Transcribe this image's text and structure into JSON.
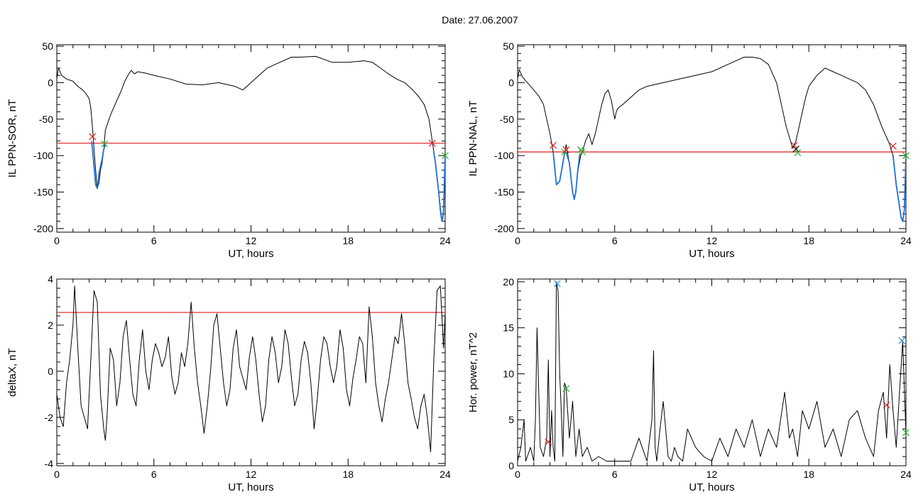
{
  "page": {
    "title": "Date:  27.06.2007"
  },
  "chart_data": [
    {
      "type": "line",
      "id": "p1",
      "xlabel": "UT, hours",
      "ylabel": "IL PPN-SOR, nT",
      "xlim": [
        0,
        24
      ],
      "ylim": [
        -205,
        52
      ],
      "xticks": [
        0,
        6,
        12,
        18,
        24
      ],
      "yticks": [
        50,
        0,
        -50,
        -100,
        -150,
        -200
      ],
      "colors": {
        "main": "#000000",
        "highlight": "#1f6fd6",
        "threshold": "#e11b1b"
      },
      "threshold": -83,
      "series": [
        {
          "role": "main",
          "x": [
            0,
            0.1,
            0.3,
            0.6,
            1.0,
            1.3,
            1.6,
            1.8,
            2.0,
            2.1,
            2.2,
            2.3,
            2.4,
            2.5,
            2.6,
            2.7,
            2.8,
            2.9,
            3.0,
            3.2,
            3.4,
            3.6,
            3.8,
            4.0,
            4.2,
            4.4,
            4.6,
            4.8,
            5.0,
            5.5,
            6.0,
            7.0,
            8.0,
            9.0,
            10.0,
            11.0,
            11.5,
            12.0,
            12.5,
            13.0,
            13.5,
            14.0,
            14.5,
            15.0,
            16.0,
            17.0,
            18.0,
            19.0,
            19.5,
            20.0,
            20.5,
            21.0,
            21.5,
            22.0,
            22.4,
            22.7,
            23.0,
            23.2,
            23.4,
            23.6,
            23.7,
            23.8,
            23.9,
            24.0
          ],
          "y": [
            5,
            20,
            10,
            5,
            2,
            -5,
            -10,
            -15,
            -22,
            -35,
            -60,
            -90,
            -120,
            -145,
            -138,
            -120,
            -110,
            -92,
            -65,
            -52,
            -40,
            -30,
            -20,
            -10,
            2,
            10,
            17,
            12,
            15,
            13,
            10,
            5,
            -2,
            -3,
            0,
            -5,
            -10,
            0,
            10,
            20,
            25,
            30,
            35,
            35,
            36,
            28,
            28,
            30,
            28,
            20,
            12,
            5,
            0,
            -10,
            -20,
            -30,
            -50,
            -80,
            -110,
            -150,
            -170,
            -190,
            -180,
            -100
          ]
        },
        {
          "role": "highlight",
          "x": [
            2.15,
            2.2,
            2.3,
            2.4,
            2.5,
            2.55,
            2.6,
            2.7,
            2.8,
            2.9,
            3.0
          ],
          "y": [
            -80,
            -90,
            -115,
            -140,
            -145,
            -138,
            -125,
            -115,
            -105,
            -92,
            -84
          ]
        },
        {
          "role": "highlight",
          "x": [
            23.3,
            23.4,
            23.5,
            23.6,
            23.7,
            23.8,
            23.85,
            23.9,
            24.0
          ],
          "y": [
            -95,
            -110,
            -130,
            -150,
            -175,
            -190,
            -185,
            -175,
            -100
          ]
        }
      ],
      "markers": [
        {
          "x": 2.2,
          "y": -74,
          "color": "#e11b1b"
        },
        {
          "x": 2.95,
          "y": -84,
          "color": "#2db52d"
        },
        {
          "x": 23.2,
          "y": -83,
          "color": "#e11b1b"
        },
        {
          "x": 24.0,
          "y": -100,
          "color": "#2db52d"
        }
      ]
    },
    {
      "type": "line",
      "id": "p2",
      "xlabel": "UT, hours",
      "ylabel": "IL PPN-NAL, nT",
      "xlim": [
        0,
        24
      ],
      "ylim": [
        -205,
        52
      ],
      "xticks": [
        0,
        6,
        12,
        18,
        24
      ],
      "yticks": [
        50,
        0,
        -50,
        -100,
        -150,
        -200
      ],
      "colors": {
        "main": "#000000",
        "highlight": "#1f6fd6",
        "threshold": "#e11b1b"
      },
      "threshold": -95,
      "series": [
        {
          "role": "main",
          "x": [
            0,
            0.1,
            0.3,
            0.6,
            1.0,
            1.3,
            1.6,
            1.8,
            2.0,
            2.2,
            2.4,
            2.6,
            2.8,
            3.0,
            3.2,
            3.4,
            3.5,
            3.6,
            3.7,
            3.9,
            4.0,
            4.2,
            4.4,
            4.6,
            4.8,
            5.0,
            5.2,
            5.4,
            5.6,
            5.8,
            6.0,
            6.1,
            6.2,
            6.5,
            7.0,
            7.5,
            8.0,
            9.0,
            10.0,
            11.0,
            12.0,
            12.5,
            13.0,
            13.5,
            14.0,
            14.5,
            15.0,
            15.5,
            16.0,
            16.3,
            16.6,
            16.8,
            17.0,
            17.2,
            17.4,
            17.6,
            17.8,
            18.0,
            18.5,
            19.0,
            19.5,
            20.0,
            20.5,
            21.0,
            21.5,
            22.0,
            22.5,
            22.8,
            23.0,
            23.2,
            23.4,
            23.6,
            23.7,
            23.8,
            23.9,
            24.0
          ],
          "y": [
            5,
            18,
            8,
            0,
            -10,
            -18,
            -30,
            -50,
            -70,
            -95,
            -140,
            -135,
            -110,
            -85,
            -110,
            -150,
            -160,
            -150,
            -125,
            -100,
            -95,
            -80,
            -70,
            -85,
            -70,
            -50,
            -30,
            -15,
            -10,
            -25,
            -50,
            -40,
            -35,
            -30,
            -20,
            -10,
            -5,
            0,
            5,
            10,
            15,
            20,
            25,
            30,
            35,
            35,
            33,
            25,
            0,
            -30,
            -60,
            -75,
            -90,
            -80,
            -60,
            -40,
            -20,
            -5,
            10,
            20,
            15,
            10,
            5,
            0,
            -10,
            -30,
            -60,
            -75,
            -85,
            -100,
            -140,
            -170,
            -185,
            -190,
            -175,
            -100
          ]
        },
        {
          "role": "highlight",
          "x": [
            2.2,
            2.4,
            2.6,
            2.8,
            2.9
          ],
          "y": [
            -95,
            -140,
            -135,
            -110,
            -97
          ]
        },
        {
          "role": "highlight",
          "x": [
            3.0,
            3.2,
            3.4,
            3.5,
            3.6,
            3.7,
            3.85
          ],
          "y": [
            -95,
            -110,
            -150,
            -160,
            -150,
            -125,
            -97
          ]
        },
        {
          "role": "highlight",
          "x": [
            23.2,
            23.4,
            23.6,
            23.7,
            23.8,
            23.9,
            24.0
          ],
          "y": [
            -100,
            -140,
            -170,
            -185,
            -190,
            -175,
            -100
          ]
        }
      ],
      "markers": [
        {
          "x": 2.2,
          "y": -86,
          "color": "#e11b1b"
        },
        {
          "x": 2.9,
          "y": -95,
          "color": "#2db52d"
        },
        {
          "x": 3.0,
          "y": -92,
          "color": "#e11b1b"
        },
        {
          "x": 3.9,
          "y": -92,
          "color": "#2db52d"
        },
        {
          "x": 4.0,
          "y": -95,
          "color": "#2db52d"
        },
        {
          "x": 17.1,
          "y": -86,
          "color": "#e11b1b"
        },
        {
          "x": 17.2,
          "y": -91,
          "color": "#000000"
        },
        {
          "x": 17.3,
          "y": -96,
          "color": "#2db52d"
        },
        {
          "x": 23.2,
          "y": -87,
          "color": "#e11b1b"
        },
        {
          "x": 24.0,
          "y": -100,
          "color": "#2db52d"
        }
      ]
    },
    {
      "type": "line",
      "id": "p3",
      "xlabel": "UT, hours",
      "ylabel": "deltaX, nT",
      "xlim": [
        0,
        24
      ],
      "ylim": [
        -4.1,
        4
      ],
      "xticks": [
        0,
        6,
        12,
        18,
        24
      ],
      "yticks": [
        4,
        2,
        0,
        -2,
        -4
      ],
      "colors": {
        "main": "#000000",
        "threshold": "#e11b1b"
      },
      "threshold": 2.55,
      "series": [
        {
          "role": "main",
          "x": [
            0,
            0.2,
            0.4,
            0.6,
            0.8,
            1.0,
            1.1,
            1.3,
            1.5,
            1.7,
            1.9,
            2.1,
            2.3,
            2.5,
            2.7,
            2.9,
            3.0,
            3.1,
            3.3,
            3.5,
            3.7,
            3.9,
            4.1,
            4.3,
            4.5,
            4.7,
            4.9,
            5.1,
            5.3,
            5.5,
            5.7,
            5.9,
            6.1,
            6.3,
            6.5,
            6.7,
            6.9,
            7.1,
            7.3,
            7.5,
            7.7,
            7.9,
            8.1,
            8.3,
            8.5,
            8.7,
            8.9,
            9.1,
            9.3,
            9.5,
            9.7,
            9.9,
            10.1,
            10.3,
            10.5,
            10.7,
            10.9,
            11.1,
            11.3,
            11.5,
            11.7,
            11.9,
            12.1,
            12.3,
            12.5,
            12.7,
            12.9,
            13.1,
            13.3,
            13.5,
            13.7,
            13.9,
            14.1,
            14.3,
            14.5,
            14.7,
            14.9,
            15.1,
            15.3,
            15.5,
            15.7,
            15.9,
            16.1,
            16.3,
            16.5,
            16.7,
            16.9,
            17.1,
            17.3,
            17.5,
            17.7,
            17.9,
            18.1,
            18.3,
            18.5,
            18.7,
            18.9,
            19.1,
            19.3,
            19.5,
            19.7,
            19.9,
            20.1,
            20.3,
            20.5,
            20.7,
            20.9,
            21.1,
            21.3,
            21.5,
            21.7,
            21.9,
            22.1,
            22.3,
            22.5,
            22.7,
            22.9,
            23.1,
            23.3,
            23.5,
            23.7,
            23.9,
            24.0
          ],
          "y": [
            -1,
            -2,
            -2.4,
            -0.5,
            0.5,
            2,
            3.7,
            1,
            -1.5,
            -2,
            -2.5,
            0.5,
            3.5,
            3,
            -1,
            -2.5,
            -3,
            -2,
            1,
            0.5,
            -1.5,
            -0.5,
            1.5,
            2.2,
            0.5,
            -1,
            -1.5,
            0.5,
            1.8,
            0,
            -0.8,
            0.5,
            1.2,
            0.8,
            0.2,
            0.6,
            1.5,
            -0.2,
            -1,
            -0.5,
            0.8,
            0.2,
            1.2,
            3,
            1,
            -0.5,
            -1.5,
            -2.7,
            -1.5,
            0,
            2,
            2.5,
            1,
            -0.5,
            -1.5,
            -0.8,
            1,
            1.8,
            0.2,
            -0.3,
            -0.8,
            0.6,
            1.5,
            0.5,
            -1,
            -2.2,
            -1.5,
            0.5,
            1.5,
            0.8,
            -0.5,
            0.2,
            1.8,
            1.2,
            -0.3,
            -1.5,
            -1,
            0.5,
            1.3,
            0.8,
            -0.5,
            -2.5,
            -1.2,
            0.5,
            1.5,
            1.2,
            0.2,
            -0.5,
            0.2,
            1.8,
            1,
            -0.8,
            -1.5,
            -0.3,
            0.5,
            1.5,
            1.2,
            -0.5,
            2.8,
            1.5,
            -0.5,
            -1.5,
            -2.2,
            -1.2,
            -0.5,
            0.5,
            1.5,
            1.2,
            2.5,
            1.2,
            -0.5,
            -1.2,
            -2,
            -2.5,
            -1.5,
            -1,
            -2,
            -3.5,
            0.5,
            3.5,
            3.7,
            1,
            2.5
          ]
        }
      ],
      "markers": []
    },
    {
      "type": "line",
      "id": "p4",
      "xlabel": "UT, hours",
      "ylabel": "Hor. power, nT^2",
      "xlim": [
        0,
        24
      ],
      "ylim": [
        0,
        20.3
      ],
      "xticks": [
        0,
        6,
        12,
        18,
        24
      ],
      "yticks": [
        20,
        15,
        10,
        5,
        0
      ],
      "colors": {
        "main": "#000000"
      },
      "series": [
        {
          "role": "main",
          "x": [
            0,
            0.2,
            0.4,
            0.5,
            0.6,
            0.8,
            1.0,
            1.1,
            1.2,
            1.4,
            1.6,
            1.8,
            1.9,
            2.0,
            2.1,
            2.2,
            2.3,
            2.4,
            2.5,
            2.6,
            2.7,
            2.8,
            2.9,
            3.0,
            3.2,
            3.4,
            3.6,
            3.8,
            4.0,
            4.3,
            4.6,
            5.0,
            5.5,
            6.0,
            6.5,
            7.0,
            7.5,
            8.0,
            8.3,
            8.4,
            8.5,
            8.6,
            8.8,
            9.0,
            9.3,
            9.5,
            9.7,
            9.9,
            10.2,
            10.5,
            11.0,
            11.5,
            12.0,
            12.5,
            13.0,
            13.5,
            14.0,
            14.5,
            15.0,
            15.5,
            16.0,
            16.5,
            16.8,
            17.0,
            17.3,
            17.6,
            18.0,
            18.5,
            19.0,
            19.5,
            20.0,
            20.5,
            21.0,
            21.5,
            22.0,
            22.3,
            22.6,
            22.8,
            23.0,
            23.2,
            23.4,
            23.6,
            23.8,
            24.0
          ],
          "y": [
            0.5,
            2,
            5,
            0.5,
            1,
            2,
            0.5,
            5,
            15,
            2,
            1,
            3,
            11.5,
            1,
            6,
            2,
            0.5,
            20,
            19,
            10,
            6,
            1,
            9,
            8.5,
            3,
            7,
            1,
            4,
            1,
            2,
            0.5,
            1,
            0.5,
            0.5,
            0.5,
            0.5,
            3,
            0.5,
            5,
            12.5,
            2,
            0.5,
            4,
            7,
            1,
            0.5,
            2,
            1,
            0.5,
            4,
            2,
            1,
            0.5,
            3,
            1,
            4,
            2,
            5,
            1,
            4,
            2,
            8,
            3,
            4,
            1,
            6,
            4,
            7,
            2,
            4,
            1,
            5,
            6,
            3,
            1,
            6,
            8,
            3,
            11,
            6,
            2,
            8,
            13.5,
            3.5
          ]
        }
      ],
      "markers": [
        {
          "x": 2.45,
          "y": 19.8,
          "color": "#2a8fd9"
        },
        {
          "x": 23.75,
          "y": 13.6,
          "color": "#2a8fd9"
        },
        {
          "x": 1.9,
          "y": 2.6,
          "color": "#e11b1b"
        },
        {
          "x": 3.0,
          "y": 8.4,
          "color": "#2db52d"
        },
        {
          "x": 22.8,
          "y": 6.6,
          "color": "#e11b1b"
        },
        {
          "x": 24.0,
          "y": 3.6,
          "color": "#2db52d"
        }
      ]
    }
  ]
}
